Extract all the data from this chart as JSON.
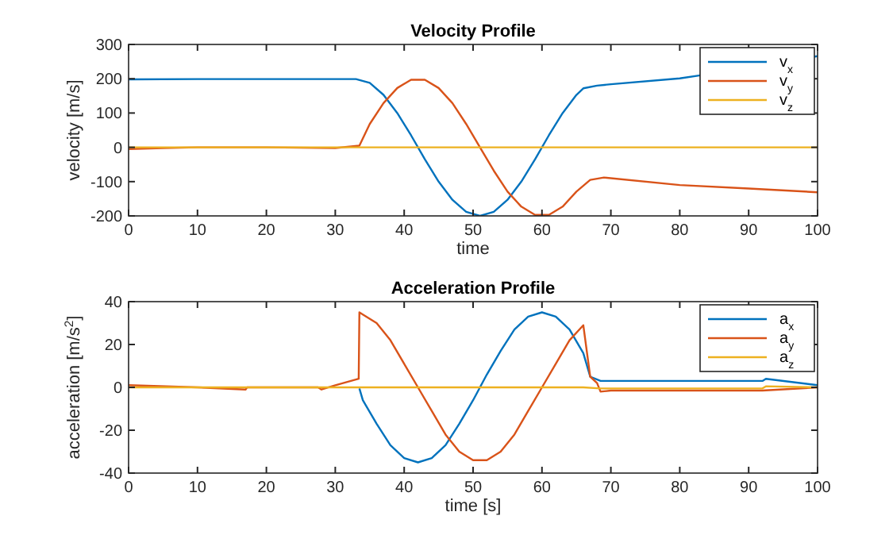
{
  "chart_data": [
    {
      "type": "line",
      "title": "Velocity Profile",
      "xlabel": "time",
      "ylabel": "velocity [m/s]",
      "xlim": [
        0,
        100
      ],
      "ylim": [
        -200,
        300
      ],
      "xticks": [
        0,
        10,
        20,
        30,
        40,
        50,
        60,
        70,
        80,
        90,
        100
      ],
      "yticks": [
        -200,
        -100,
        0,
        100,
        200,
        300
      ],
      "legend": "top right",
      "grid": false,
      "series": [
        {
          "name": "v$_{x}$",
          "color": "#0072bd",
          "x": [
            0,
            10,
            20,
            30,
            33,
            35,
            37,
            39,
            41,
            43,
            45,
            47,
            49,
            51,
            53,
            55,
            57,
            59,
            61,
            63,
            65,
            66,
            68,
            70,
            80,
            83,
            100
          ],
          "values": [
            198,
            199,
            199,
            199,
            199,
            188,
            153,
            100,
            35,
            -35,
            -100,
            -153,
            -188,
            -200,
            -188,
            -153,
            -100,
            -35,
            35,
            100,
            153,
            172,
            180,
            184,
            201,
            210,
            266
          ]
        },
        {
          "name": "v$_{y}$",
          "color": "#d95319",
          "x": [
            0,
            5,
            10,
            20,
            30,
            33.5,
            35,
            37,
            39,
            41,
            43,
            45,
            47,
            49,
            51,
            53,
            55,
            57,
            59,
            61,
            63,
            65,
            67,
            69,
            80,
            90,
            100
          ],
          "values": [
            -5,
            -2,
            0,
            0,
            -2,
            5,
            68,
            129,
            173,
            197,
            197,
            173,
            129,
            68,
            0,
            -68,
            -129,
            -173,
            -197,
            -197,
            -173,
            -129,
            -95,
            -88,
            -110,
            -120,
            -131
          ]
        },
        {
          "name": "v$_{z}$",
          "color": "#edb120",
          "x": [
            0,
            100
          ],
          "values": [
            0,
            0
          ]
        }
      ]
    },
    {
      "type": "line",
      "title": "Acceleration Profile",
      "xlabel": "time [s]",
      "ylabel": "acceleration [m/s$^{2}$]",
      "xlim": [
        0,
        100
      ],
      "ylim": [
        -40,
        40
      ],
      "xticks": [
        0,
        10,
        20,
        30,
        40,
        50,
        60,
        70,
        80,
        90,
        100
      ],
      "yticks": [
        -40,
        -20,
        0,
        20,
        40
      ],
      "legend": "top right",
      "grid": false,
      "series": [
        {
          "name": "a$_{x}$",
          "color": "#0072bd",
          "x": [
            33.5,
            34,
            36,
            38,
            40,
            42,
            44,
            46,
            48,
            50,
            52,
            54,
            56,
            58,
            60,
            62,
            64,
            66,
            67,
            68.5,
            70,
            80,
            92,
            92.5,
            100
          ],
          "values": [
            -0.5,
            -6,
            -17,
            -27,
            -33,
            -35,
            -33,
            -27,
            -17,
            -6,
            6,
            17,
            27,
            33,
            35,
            33,
            27,
            16,
            5,
            3,
            3,
            3,
            3,
            4,
            1
          ]
        },
        {
          "name": "a$_{y}$",
          "color": "#d95319",
          "x": [
            0,
            10,
            17,
            17.2,
            20,
            27.5,
            28,
            30,
            33.4,
            33.5,
            34,
            36,
            38,
            40,
            42,
            44,
            46,
            48,
            50,
            52,
            54,
            56,
            58,
            60,
            62,
            64,
            66,
            67,
            68,
            68.5,
            70,
            80,
            92,
            100
          ],
          "values": [
            1,
            0,
            -1,
            0,
            0,
            0,
            -1,
            1,
            4,
            35,
            34,
            30,
            22,
            11,
            0,
            -11,
            -22,
            -30,
            -34,
            -34,
            -30,
            -22,
            -11,
            0,
            11,
            22,
            29,
            5,
            2,
            -2,
            -1.5,
            -1.5,
            -1.5,
            0
          ]
        },
        {
          "name": "a$_{z}$",
          "color": "#edb120",
          "x": [
            0,
            66,
            68.5,
            92,
            92.5,
            100
          ],
          "values": [
            0,
            0,
            -0.5,
            -0.5,
            0.5,
            0
          ]
        }
      ]
    }
  ]
}
